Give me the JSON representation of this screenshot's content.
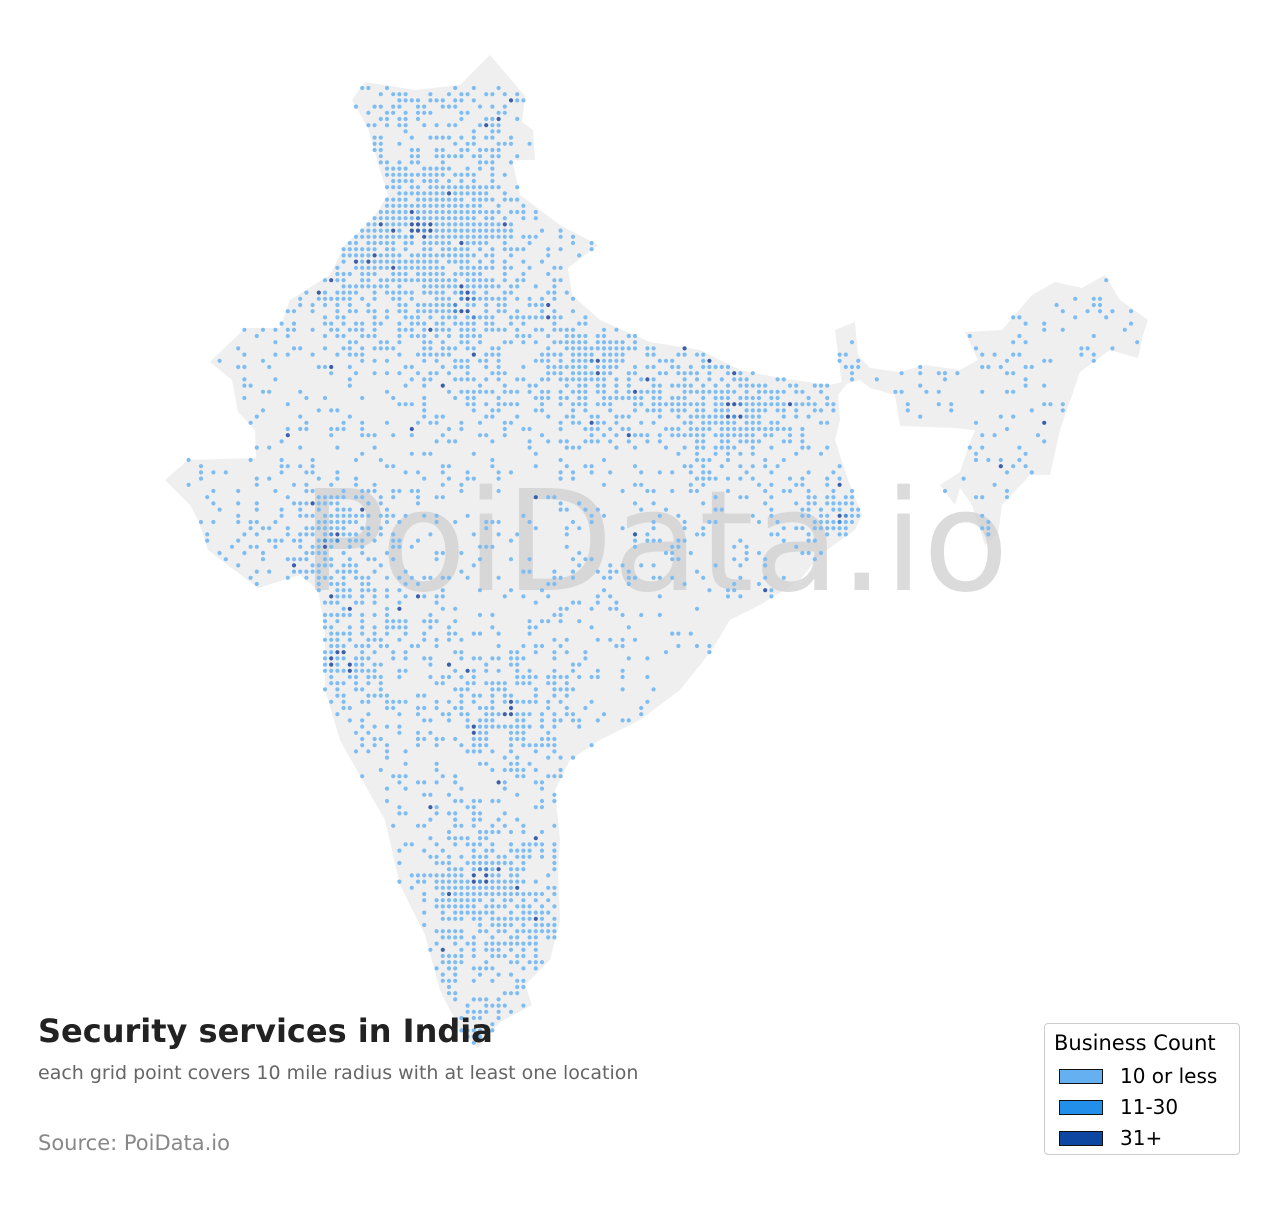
{
  "map": {
    "title": "Security services in India",
    "subtitle": "each grid point covers 10 mile radius with at least one location",
    "source": "Source: PoiData.io",
    "watermark": "PoiData.io",
    "land_color": "#efefef",
    "watermark_color": "#cfcfcf"
  },
  "legend": {
    "title": "Business Count",
    "items": [
      {
        "label": "10 or less",
        "color": "#64b0f0"
      },
      {
        "label": "11-30",
        "color": "#2290ea"
      },
      {
        "label": "31+",
        "color": "#0e47a1"
      }
    ]
  },
  "dot_colors": {
    "low": "#7ebdf2",
    "mid": "#4a8fd8",
    "high": "#3b5fa8"
  }
}
